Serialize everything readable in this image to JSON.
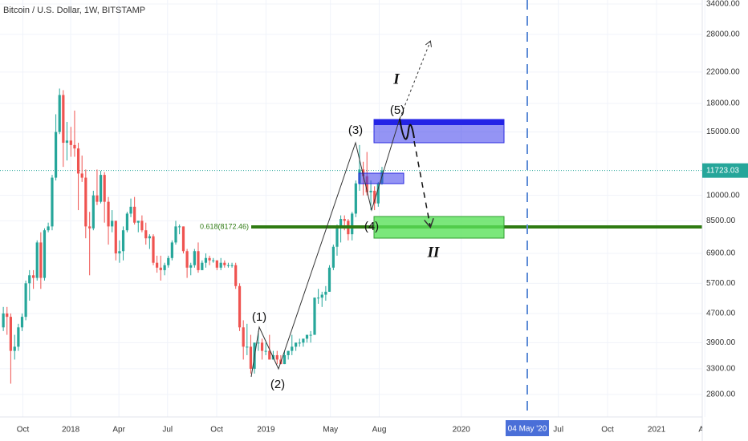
{
  "chart_data": {
    "type": "candlestick",
    "title": "Bitcoin / U.S. Dollar, 1W, BITSTAMP",
    "log_y": true,
    "grid": true,
    "up_color": "#26a69a",
    "down_color": "#ef5350",
    "xlim": [
      2017.638,
      2021.234
    ],
    "ylim": [
      2425,
      34883
    ],
    "xticks": [
      {
        "value": 2017.755,
        "label": "Oct"
      },
      {
        "value": 2018.0,
        "label": "2018"
      },
      {
        "value": 2018.247,
        "label": "Apr"
      },
      {
        "value": 2018.496,
        "label": "Jul"
      },
      {
        "value": 2018.748,
        "label": "Oct"
      },
      {
        "value": 2019.0,
        "label": "2019"
      },
      {
        "value": 2019.33,
        "label": "May"
      },
      {
        "value": 2019.58,
        "label": "Aug"
      },
      {
        "value": 2020.0,
        "label": "2020"
      },
      {
        "value": 2020.497,
        "label": "Jul"
      },
      {
        "value": 2020.749,
        "label": "Oct"
      },
      {
        "value": 2021.0,
        "label": "2021"
      },
      {
        "value": 2021.247,
        "label": "Apr"
      }
    ],
    "yticks": [
      {
        "value": 2800,
        "label": "2800.00"
      },
      {
        "value": 3300,
        "label": "3300.00"
      },
      {
        "value": 3900,
        "label": "3900.00"
      },
      {
        "value": 4700,
        "label": "4700.00"
      },
      {
        "value": 5700,
        "label": "5700.00"
      },
      {
        "value": 6900,
        "label": "6900.00"
      },
      {
        "value": 8500,
        "label": "8500.00"
      },
      {
        "value": 10000,
        "label": "10000.00"
      },
      {
        "value": 15000,
        "label": "15000.00"
      },
      {
        "value": 18000,
        "label": "18000.00"
      },
      {
        "value": 22000,
        "label": "22000.00"
      },
      {
        "value": 28000,
        "label": "28000.00"
      },
      {
        "value": 34000,
        "label": "34000.00"
      }
    ],
    "x": [
      2017.655,
      2017.674,
      2017.693,
      2017.713,
      2017.732,
      2017.751,
      2017.77,
      2017.789,
      2017.809,
      2017.828,
      2017.847,
      2017.866,
      2017.885,
      2017.905,
      2017.924,
      2017.943,
      2017.962,
      2017.981,
      2018.001,
      2018.02,
      2018.039,
      2018.058,
      2018.077,
      2018.097,
      2018.116,
      2018.135,
      2018.154,
      2018.173,
      2018.193,
      2018.212,
      2018.231,
      2018.25,
      2018.269,
      2018.289,
      2018.308,
      2018.327,
      2018.346,
      2018.365,
      2018.385,
      2018.404,
      2018.423,
      2018.442,
      2018.461,
      2018.481,
      2018.5,
      2018.519,
      2018.538,
      2018.557,
      2018.577,
      2018.596,
      2018.615,
      2018.634,
      2018.653,
      2018.673,
      2018.692,
      2018.711,
      2018.73,
      2018.749,
      2018.769,
      2018.788,
      2018.807,
      2018.826,
      2018.845,
      2018.865,
      2018.884,
      2018.903,
      2018.922,
      2018.941,
      2018.961,
      2018.98,
      2018.999,
      2019.018,
      2019.037,
      2019.057,
      2019.076,
      2019.095,
      2019.114,
      2019.133,
      2019.153,
      2019.172,
      2019.191,
      2019.21,
      2019.229,
      2019.249,
      2019.268,
      2019.287,
      2019.306,
      2019.325,
      2019.345,
      2019.364,
      2019.383,
      2019.402,
      2019.421,
      2019.441,
      2019.46,
      2019.479,
      2019.498,
      2019.517,
      2019.537,
      2019.556,
      2019.575,
      2019.594
    ],
    "open": [
      4300,
      4700,
      4600,
      3700,
      3800,
      4300,
      4600,
      5700,
      6000,
      5900,
      7400,
      5900,
      8000,
      8200,
      11200,
      15000,
      19000,
      14000,
      14200,
      13800,
      13500,
      11500,
      11200,
      8200,
      8100,
      10000,
      9600,
      11400,
      9600,
      8200,
      8500,
      6900,
      7000,
      8000,
      8900,
      9300,
      8400,
      8500,
      8000,
      7600,
      7700,
      6500,
      6300,
      6200,
      6400,
      6700,
      7400,
      8200,
      8200,
      7000,
      6300,
      6400,
      7000,
      6200,
      6500,
      6700,
      6600,
      6600,
      6300,
      6500,
      6400,
      6400,
      6400,
      5600,
      4300,
      3800,
      3800,
      3300,
      3900,
      3900,
      3700,
      3700,
      3500,
      3600,
      3500,
      3400,
      3600,
      3700,
      3800,
      3900,
      3900,
      4000,
      4100,
      4100,
      5200,
      5200,
      5300,
      5400,
      6300,
      7200,
      8100,
      8600,
      8500,
      7800,
      8900,
      10800,
      11800,
      11300,
      10200,
      10300,
      9500,
      10800
    ],
    "high": [
      4900,
      4900,
      4700,
      4100,
      4400,
      4700,
      5800,
      6200,
      6200,
      7500,
      7900,
      8100,
      8400,
      11400,
      16800,
      19800,
      19600,
      16000,
      15500,
      17200,
      14000,
      12900,
      11800,
      9000,
      10300,
      11800,
      11700,
      11600,
      9900,
      9100,
      8500,
      7500,
      8200,
      9000,
      9800,
      9900,
      8500,
      8800,
      8400,
      7800,
      7800,
      6800,
      6800,
      6500,
      6800,
      7500,
      8500,
      8300,
      8200,
      7100,
      6500,
      7100,
      7400,
      6600,
      6900,
      6800,
      6700,
      6600,
      6700,
      6600,
      6500,
      6500,
      6500,
      5700,
      4500,
      4400,
      4100,
      3900,
      4200,
      4000,
      3900,
      4100,
      3700,
      3700,
      3600,
      3700,
      3700,
      4100,
      3900,
      4000,
      4000,
      4100,
      4200,
      5200,
      5500,
      5400,
      5600,
      6400,
      7300,
      8300,
      8800,
      8800,
      8600,
      9000,
      11000,
      13800,
      12400,
      13200,
      11000,
      10600,
      10900,
      12000
    ],
    "low": [
      4200,
      4100,
      3000,
      3500,
      3700,
      4200,
      4500,
      5100,
      5500,
      5800,
      5500,
      5800,
      7900,
      8000,
      11000,
      14800,
      12000,
      12500,
      12800,
      12800,
      9100,
      10900,
      7600,
      6000,
      8000,
      9400,
      9500,
      8400,
      7300,
      7900,
      6600,
      6500,
      6600,
      7900,
      8700,
      8300,
      7900,
      7900,
      7300,
      7100,
      6400,
      6100,
      5800,
      6000,
      6300,
      6600,
      7300,
      7800,
      6900,
      5900,
      6000,
      6300,
      6100,
      6200,
      6300,
      6400,
      6500,
      6200,
      6200,
      6300,
      6300,
      6300,
      5500,
      4200,
      3500,
      3600,
      3200,
      3200,
      3700,
      3500,
      3600,
      3500,
      3500,
      3400,
      3400,
      3400,
      3500,
      3600,
      3700,
      3800,
      3800,
      3900,
      3900,
      4100,
      5000,
      4900,
      5100,
      5400,
      6200,
      6800,
      7400,
      8000,
      7500,
      7500,
      8700,
      10300,
      10000,
      10000,
      9100,
      9100,
      9300,
      10700
    ],
    "close": [
      4700,
      4600,
      3700,
      3800,
      4300,
      4600,
      5700,
      6000,
      5900,
      7400,
      5900,
      8000,
      8200,
      11200,
      15000,
      19000,
      14000,
      14200,
      13800,
      13500,
      11500,
      11200,
      8200,
      8100,
      10000,
      9600,
      11400,
      9600,
      8200,
      8500,
      6900,
      7000,
      8000,
      8900,
      9300,
      8400,
      8500,
      8000,
      7600,
      7700,
      6500,
      6300,
      6200,
      6400,
      6700,
      7400,
      8200,
      8200,
      7000,
      6300,
      6400,
      7000,
      6200,
      6500,
      6700,
      6600,
      6600,
      6300,
      6500,
      6400,
      6400,
      6400,
      5600,
      4300,
      3800,
      3800,
      3300,
      3900,
      3900,
      3700,
      3700,
      3500,
      3600,
      3500,
      3400,
      3600,
      3700,
      3800,
      3900,
      3900,
      4000,
      4100,
      4100,
      5200,
      5200,
      5300,
      5400,
      6300,
      7200,
      8100,
      8600,
      8500,
      7800,
      8900,
      10800,
      11800,
      11300,
      10200,
      10300,
      9500,
      10800,
      11723
    ],
    "fib_level": {
      "value": 8172.46,
      "label": "0.618(8172.46)"
    },
    "last_price": {
      "value": 11723.03,
      "label": "11723.03"
    },
    "crosshair": {
      "value": 2020.338,
      "label": "04 May '20"
    },
    "annotations": [
      "(1)",
      "(2)",
      "(3)",
      "(4)",
      "(5)",
      "I",
      "II"
    ]
  }
}
